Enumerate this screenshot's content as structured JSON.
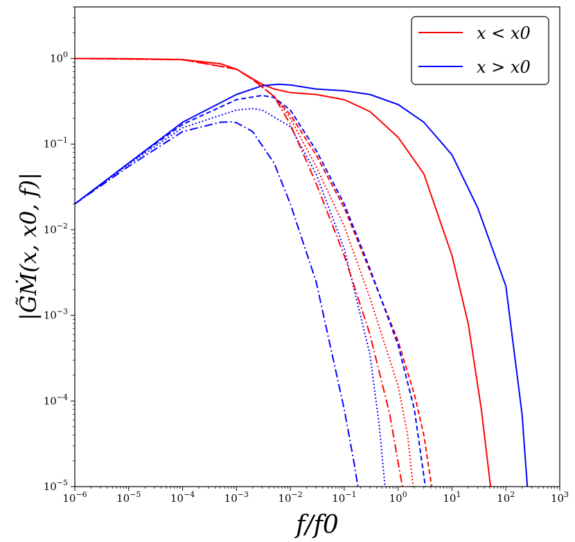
{
  "chart_data": {
    "type": "line",
    "x_scale": "log",
    "y_scale": "log",
    "xlabel": "f/f0",
    "ylabel": "|G̃Ṁ(x, x0, f)|",
    "xlim": [
      1e-06,
      1000
    ],
    "ylim": [
      1e-05,
      4
    ],
    "grid": false,
    "legend_position": "top-right",
    "x_ticks": [
      {
        "base": "10",
        "exp": "−6"
      },
      {
        "base": "10",
        "exp": "−5"
      },
      {
        "base": "10",
        "exp": "−4"
      },
      {
        "base": "10",
        "exp": "−3"
      },
      {
        "base": "10",
        "exp": "−2"
      },
      {
        "base": "10",
        "exp": "−1"
      },
      {
        "base": "10",
        "exp": "0"
      },
      {
        "base": "10",
        "exp": "1"
      },
      {
        "base": "10",
        "exp": "2"
      },
      {
        "base": "10",
        "exp": "3"
      }
    ],
    "y_ticks": [
      {
        "base": "10",
        "exp": "−5"
      },
      {
        "base": "10",
        "exp": "−4"
      },
      {
        "base": "10",
        "exp": "−3"
      },
      {
        "base": "10",
        "exp": "−2"
      },
      {
        "base": "10",
        "exp": "−1"
      },
      {
        "base": "10",
        "exp": "0"
      }
    ],
    "legend": [
      {
        "label": "x < x0",
        "color": "#ff0000"
      },
      {
        "label": "x > x0",
        "color": "#0000ff"
      }
    ],
    "series": [
      {
        "color": "#ff0000",
        "dash": "solid",
        "points": [
          [
            1e-06,
            1
          ],
          [
            1e-05,
            0.995
          ],
          [
            0.0001,
            0.97
          ],
          [
            0.0005,
            0.87
          ],
          [
            0.001,
            0.75
          ],
          [
            0.002,
            0.58
          ],
          [
            0.003,
            0.5
          ],
          [
            0.005,
            0.44
          ],
          [
            0.01,
            0.4
          ],
          [
            0.03,
            0.38
          ],
          [
            0.1,
            0.33
          ],
          [
            0.3,
            0.24
          ],
          [
            1,
            0.12
          ],
          [
            3,
            0.045
          ],
          [
            10,
            0.005
          ],
          [
            20,
            0.0008
          ],
          [
            35,
            8e-05
          ],
          [
            52,
            1e-05
          ]
        ]
      },
      {
        "color": "#0000ff",
        "dash": "solid",
        "points": [
          [
            1e-06,
            0.02
          ],
          [
            1e-05,
            0.06
          ],
          [
            0.0001,
            0.18
          ],
          [
            0.001,
            0.38
          ],
          [
            0.003,
            0.48
          ],
          [
            0.006,
            0.5
          ],
          [
            0.01,
            0.49
          ],
          [
            0.03,
            0.44
          ],
          [
            0.1,
            0.42
          ],
          [
            0.3,
            0.38
          ],
          [
            1,
            0.29
          ],
          [
            3,
            0.18
          ],
          [
            10,
            0.075
          ],
          [
            30,
            0.018
          ],
          [
            100,
            0.0022
          ],
          [
            200,
            7e-05
          ],
          [
            250,
            1e-05
          ]
        ]
      },
      {
        "color": "#ff0000",
        "dash": "dashed",
        "points": [
          [
            1e-06,
            1
          ],
          [
            0.0001,
            0.97
          ],
          [
            0.001,
            0.75
          ],
          [
            0.002,
            0.57
          ],
          [
            0.005,
            0.36
          ],
          [
            0.01,
            0.22
          ],
          [
            0.03,
            0.075
          ],
          [
            0.1,
            0.018
          ],
          [
            0.3,
            0.0033
          ],
          [
            1,
            0.0005
          ],
          [
            2,
            0.00012
          ],
          [
            3,
            4e-05
          ],
          [
            4.2,
            1e-05
          ]
        ]
      },
      {
        "color": "#0000ff",
        "dash": "dashed",
        "points": [
          [
            1e-06,
            0.02
          ],
          [
            1e-05,
            0.06
          ],
          [
            0.0001,
            0.17
          ],
          [
            0.001,
            0.33
          ],
          [
            0.003,
            0.37
          ],
          [
            0.005,
            0.35
          ],
          [
            0.01,
            0.25
          ],
          [
            0.03,
            0.085
          ],
          [
            0.1,
            0.02
          ],
          [
            0.3,
            0.0035
          ],
          [
            1,
            0.00045
          ],
          [
            2,
            8e-05
          ],
          [
            3.2,
            1e-05
          ]
        ]
      },
      {
        "color": "#ff0000",
        "dash": "dotted",
        "points": [
          [
            1e-06,
            1
          ],
          [
            0.0001,
            0.97
          ],
          [
            0.001,
            0.75
          ],
          [
            0.002,
            0.57
          ],
          [
            0.005,
            0.36
          ],
          [
            0.01,
            0.2
          ],
          [
            0.03,
            0.055
          ],
          [
            0.1,
            0.011
          ],
          [
            0.3,
            0.0016
          ],
          [
            1,
            0.00015
          ],
          [
            1.5,
            4e-05
          ],
          [
            1.9,
            1e-05
          ]
        ]
      },
      {
        "color": "#0000ff",
        "dash": "dotted",
        "points": [
          [
            1e-06,
            0.02
          ],
          [
            1e-05,
            0.058
          ],
          [
            0.0001,
            0.155
          ],
          [
            0.001,
            0.25
          ],
          [
            0.002,
            0.26
          ],
          [
            0.003,
            0.25
          ],
          [
            0.01,
            0.16
          ],
          [
            0.03,
            0.045
          ],
          [
            0.1,
            0.006
          ],
          [
            0.3,
            0.00035
          ],
          [
            0.45,
            5e-05
          ],
          [
            0.57,
            1e-05
          ]
        ]
      },
      {
        "color": "#ff0000",
        "dash": "dashdot",
        "points": [
          [
            1e-06,
            1
          ],
          [
            0.0001,
            0.97
          ],
          [
            0.001,
            0.75
          ],
          [
            0.002,
            0.57
          ],
          [
            0.005,
            0.36
          ],
          [
            0.01,
            0.17
          ],
          [
            0.03,
            0.035
          ],
          [
            0.1,
            0.005
          ],
          [
            0.3,
            0.0006
          ],
          [
            0.7,
            7e-05
          ],
          [
            1.2,
            1e-05
          ]
        ]
      },
      {
        "color": "#0000ff",
        "dash": "dashdot",
        "points": [
          [
            1e-06,
            0.02
          ],
          [
            1e-05,
            0.055
          ],
          [
            0.0001,
            0.14
          ],
          [
            0.0005,
            0.18
          ],
          [
            0.0008,
            0.182
          ],
          [
            0.001,
            0.178
          ],
          [
            0.002,
            0.14
          ],
          [
            0.005,
            0.06
          ],
          [
            0.01,
            0.02
          ],
          [
            0.03,
            0.0025
          ],
          [
            0.1,
            8e-05
          ],
          [
            0.15,
            2e-05
          ],
          [
            0.18,
            1e-05
          ]
        ]
      }
    ]
  }
}
